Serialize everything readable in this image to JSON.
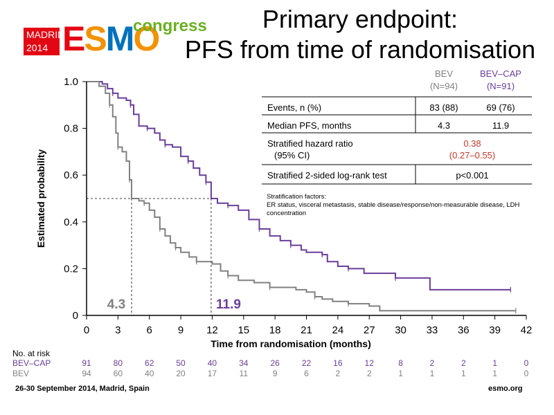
{
  "logo": {
    "city_year_line1": "MADRID",
    "city_year_line2": "2014",
    "brand_e": "E",
    "brand_s": "S",
    "brand_m": "M",
    "brand_o": "O",
    "congress": "congress",
    "colors": {
      "red": "#e30613",
      "orange": "#f39200",
      "blue": "#0072bc",
      "green": "#6ab023"
    }
  },
  "title": {
    "line1": "Primary endpoint:",
    "line2": "PFS from time of randomisation"
  },
  "stats_table": {
    "col_bev": {
      "name": "BEV",
      "n": "(N=94)"
    },
    "col_bevcap": {
      "name": "BEV–CAP",
      "n": "(N=91)"
    },
    "rows": [
      {
        "label": "Events, n (%)",
        "bev": "83 (88)",
        "bevcap": "69 (76)"
      },
      {
        "label": "Median PFS, months",
        "bev": "4.3",
        "bevcap": "11.9"
      }
    ],
    "hr_label_1": "Stratified hazard ratio",
    "hr_label_2": "(95% CI)",
    "hr_value": "0.38",
    "hr_ci": "(0.27–0.55)",
    "logrank_label": "Stratified 2-sided log-rank test",
    "logrank_value": "p<0.001",
    "strat_title": "Stratification factors:",
    "strat_text": "ER status, visceral metastasis, stable disease/response/non-measurable disease, LDH concentration"
  },
  "chart_data": {
    "type": "line",
    "xlabel": "Time from randomisation (months)",
    "ylabel": "Estimated probability",
    "xlim": [
      0,
      42
    ],
    "ylim": [
      0,
      1.0
    ],
    "x_ticks": [
      "0",
      "3",
      "6",
      "9",
      "12",
      "15",
      "18",
      "21",
      "24",
      "27",
      "30",
      "33",
      "36",
      "39",
      "42"
    ],
    "y_ticks": [
      "0",
      "0.2",
      "0.4",
      "0.6",
      "0.8",
      "1.0"
    ],
    "median_level": 0.5,
    "medians": [
      {
        "series": "BEV",
        "x": 4.3,
        "label": "4.3"
      },
      {
        "series": "BEV–CAP",
        "x": 11.9,
        "label": "11.9"
      }
    ],
    "series": [
      {
        "name": "BEV–CAP",
        "color": "#6a3d9a",
        "points": [
          [
            0,
            1.0
          ],
          [
            1.5,
            0.99
          ],
          [
            2,
            0.97
          ],
          [
            2.5,
            0.95
          ],
          [
            3,
            0.93
          ],
          [
            3.8,
            0.92
          ],
          [
            4.2,
            0.9
          ],
          [
            4.5,
            0.86
          ],
          [
            5,
            0.81
          ],
          [
            5.8,
            0.8
          ],
          [
            6.5,
            0.78
          ],
          [
            7,
            0.75
          ],
          [
            7.5,
            0.73
          ],
          [
            8.2,
            0.72
          ],
          [
            9,
            0.68
          ],
          [
            9.7,
            0.66
          ],
          [
            10.2,
            0.63
          ],
          [
            10.8,
            0.6
          ],
          [
            11.4,
            0.57
          ],
          [
            11.9,
            0.5
          ],
          [
            12.5,
            0.48
          ],
          [
            13.5,
            0.47
          ],
          [
            14.5,
            0.45
          ],
          [
            15.5,
            0.41
          ],
          [
            16.5,
            0.37
          ],
          [
            17.5,
            0.34
          ],
          [
            18.5,
            0.32
          ],
          [
            19.5,
            0.3
          ],
          [
            20.5,
            0.28
          ],
          [
            21,
            0.27
          ],
          [
            22.5,
            0.26
          ],
          [
            23,
            0.23
          ],
          [
            24,
            0.21
          ],
          [
            25,
            0.2
          ],
          [
            26.5,
            0.18
          ],
          [
            28,
            0.18
          ],
          [
            29.5,
            0.16
          ],
          [
            30.5,
            0.16
          ],
          [
            32.8,
            0.11
          ],
          [
            40.5,
            0.11
          ]
        ]
      },
      {
        "name": "BEV",
        "color": "#808080",
        "points": [
          [
            0,
            1.0
          ],
          [
            1.2,
            0.98
          ],
          [
            1.8,
            0.95
          ],
          [
            2.2,
            0.9
          ],
          [
            2.5,
            0.85
          ],
          [
            2.8,
            0.78
          ],
          [
            3.0,
            0.72
          ],
          [
            3.4,
            0.7
          ],
          [
            3.8,
            0.66
          ],
          [
            4.1,
            0.58
          ],
          [
            4.3,
            0.5
          ],
          [
            5.0,
            0.49
          ],
          [
            5.5,
            0.48
          ],
          [
            6.0,
            0.45
          ],
          [
            6.5,
            0.42
          ],
          [
            7.0,
            0.37
          ],
          [
            7.5,
            0.34
          ],
          [
            8.0,
            0.31
          ],
          [
            8.5,
            0.29
          ],
          [
            9.0,
            0.27
          ],
          [
            9.8,
            0.25
          ],
          [
            10.5,
            0.23
          ],
          [
            12.0,
            0.22
          ],
          [
            12.8,
            0.19
          ],
          [
            13.5,
            0.17
          ],
          [
            14.5,
            0.15
          ],
          [
            16.0,
            0.14
          ],
          [
            17.5,
            0.12
          ],
          [
            20.0,
            0.11
          ],
          [
            21.0,
            0.1
          ],
          [
            21.8,
            0.08
          ],
          [
            22.5,
            0.07
          ],
          [
            23.5,
            0.06
          ],
          [
            25.0,
            0.05
          ],
          [
            27.0,
            0.04
          ],
          [
            28.0,
            0.02
          ],
          [
            41.0,
            0.02
          ]
        ]
      }
    ]
  },
  "risk_table": {
    "title": "No. at risk",
    "rows": [
      {
        "name": "BEV–CAP",
        "color": "#6a3d9a",
        "values": [
          "91",
          "80",
          "62",
          "50",
          "40",
          "34",
          "26",
          "22",
          "16",
          "12",
          "8",
          "2",
          "2",
          "1",
          "0"
        ]
      },
      {
        "name": "BEV",
        "color": "#808080",
        "values": [
          "94",
          "60",
          "40",
          "20",
          "17",
          "11",
          "9",
          "6",
          "2",
          "2",
          "1",
          "1",
          "1",
          "1",
          "0"
        ]
      }
    ]
  },
  "footer": {
    "left": "26-30 September 2014, Madrid, Spain",
    "right": "esmo.org"
  }
}
